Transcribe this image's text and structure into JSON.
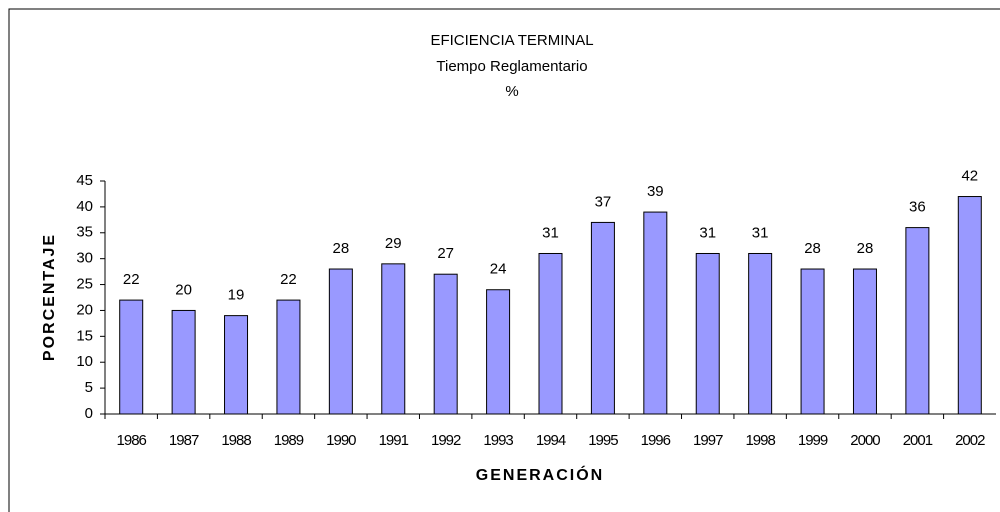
{
  "chart_data": {
    "type": "bar",
    "title": "EFICIENCIA TERMINAL",
    "subtitle": "Tiempo Reglamentario",
    "unit": "%",
    "x_label": "GENERACIÓN",
    "y_label": "PORCENTAJE",
    "categories": [
      "1986",
      "1987",
      "1988",
      "1989",
      "1990",
      "1991",
      "1992",
      "1993",
      "1994",
      "1995",
      "1996",
      "1997",
      "1998",
      "1999",
      "2000",
      "2001",
      "2002"
    ],
    "values": [
      22,
      20,
      19,
      22,
      28,
      29,
      27,
      24,
      31,
      37,
      39,
      31,
      31,
      28,
      28,
      36,
      42
    ],
    "color": "#9999ff",
    "ylim": [
      0,
      45
    ],
    "yticks": [
      0,
      5,
      10,
      15,
      20,
      25,
      30,
      35,
      40,
      45
    ],
    "grid": false
  }
}
